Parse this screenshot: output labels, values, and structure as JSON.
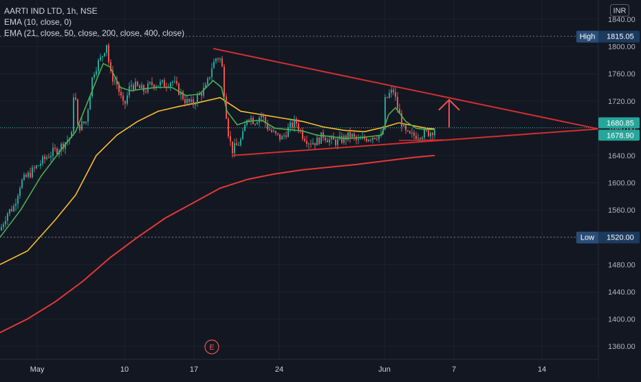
{
  "legend": {
    "symbol_line": "AARTI IND LTD, 1h, NSE",
    "ema1_line": "EMA (10, close, 0)",
    "ema2_line": "EMA (21, close, 50, close, 200, close, 400, close)"
  },
  "currency": "INR",
  "earnings_marker": "E",
  "colors": {
    "background": "#131722",
    "up": "#26a69a",
    "down": "#ef5350",
    "ema_fast": "#4caf50",
    "ema_mid": "#fbc02d",
    "ema_slow": "#e53935",
    "trendline": "#d32f2f",
    "price_tag": "#26a69a",
    "level_tag": "#1e2a44"
  },
  "chart_data": {
    "type": "candlestick",
    "y_axis": {
      "range": [
        1342,
        1848
      ],
      "ticks": [
        "1360.00",
        "1400.00",
        "1440.00",
        "1480.00",
        "1520.00",
        "1560.00",
        "1600.00",
        "1640.00",
        "1680.00",
        "1720.00",
        "1760.00",
        "1800.00",
        "1840.00"
      ]
    },
    "x_axis": {
      "tick_labels": [
        "May",
        "10",
        "17",
        "24",
        "Jun",
        "7",
        "14"
      ]
    },
    "levels": [
      {
        "label": "High",
        "value": "1815.05",
        "price": 1815.05
      },
      {
        "label": "Low",
        "value": "1520.00",
        "price": 1520.0
      }
    ],
    "price_tags": [
      {
        "value": "1680.85",
        "price": 1680.85
      },
      {
        "value": "1678.90",
        "price": 1678.9
      }
    ],
    "ohlc_keypoints": [
      [
        0,
        1530
      ],
      [
        10,
        1555
      ],
      [
        20,
        1565
      ],
      [
        30,
        1600
      ],
      [
        40,
        1610
      ],
      [
        55,
        1625
      ],
      [
        70,
        1640
      ],
      [
        85,
        1650
      ],
      [
        95,
        1660
      ],
      [
        105,
        1670
      ],
      [
        108,
        1760
      ],
      [
        112,
        1680
      ],
      [
        125,
        1690
      ],
      [
        135,
        1760
      ],
      [
        142,
        1775
      ],
      [
        148,
        1785
      ],
      [
        155,
        1805
      ],
      [
        160,
        1760
      ],
      [
        170,
        1745
      ],
      [
        180,
        1710
      ],
      [
        190,
        1745
      ],
      [
        200,
        1740
      ],
      [
        210,
        1735
      ],
      [
        220,
        1745
      ],
      [
        230,
        1745
      ],
      [
        240,
        1745
      ],
      [
        250,
        1750
      ],
      [
        260,
        1735
      ],
      [
        270,
        1720
      ],
      [
        280,
        1715
      ],
      [
        290,
        1730
      ],
      [
        300,
        1740
      ],
      [
        308,
        1770
      ],
      [
        315,
        1785
      ],
      [
        322,
        1780
      ],
      [
        328,
        1710
      ],
      [
        333,
        1665
      ],
      [
        338,
        1648
      ],
      [
        345,
        1655
      ],
      [
        352,
        1665
      ],
      [
        360,
        1700
      ],
      [
        370,
        1690
      ],
      [
        380,
        1700
      ],
      [
        390,
        1680
      ],
      [
        400,
        1670
      ],
      [
        410,
        1665
      ],
      [
        420,
        1680
      ],
      [
        430,
        1690
      ],
      [
        440,
        1670
      ],
      [
        450,
        1660
      ],
      [
        460,
        1660
      ],
      [
        470,
        1670
      ],
      [
        480,
        1662
      ],
      [
        490,
        1660
      ],
      [
        500,
        1665
      ],
      [
        510,
        1670
      ],
      [
        520,
        1660
      ],
      [
        530,
        1665
      ],
      [
        540,
        1668
      ],
      [
        550,
        1670
      ],
      [
        556,
        1665
      ],
      [
        560,
        1720
      ],
      [
        566,
        1730
      ],
      [
        572,
        1735
      ],
      [
        578,
        1710
      ],
      [
        582,
        1695
      ],
      [
        588,
        1675
      ],
      [
        595,
        1668
      ],
      [
        605,
        1670
      ],
      [
        615,
        1672
      ],
      [
        625,
        1674
      ],
      [
        632,
        1679
      ]
    ],
    "ema_fast_keypoints": [
      [
        0,
        1520
      ],
      [
        30,
        1560
      ],
      [
        60,
        1610
      ],
      [
        90,
        1650
      ],
      [
        110,
        1675
      ],
      [
        130,
        1725
      ],
      [
        150,
        1775
      ],
      [
        160,
        1770
      ],
      [
        175,
        1740
      ],
      [
        190,
        1735
      ],
      [
        210,
        1738
      ],
      [
        230,
        1740
      ],
      [
        250,
        1740
      ],
      [
        270,
        1728
      ],
      [
        290,
        1730
      ],
      [
        310,
        1750
      ],
      [
        322,
        1740
      ],
      [
        330,
        1705
      ],
      [
        345,
        1685
      ],
      [
        360,
        1690
      ],
      [
        380,
        1692
      ],
      [
        400,
        1680
      ],
      [
        420,
        1678
      ],
      [
        440,
        1676
      ],
      [
        460,
        1670
      ],
      [
        480,
        1668
      ],
      [
        500,
        1665
      ],
      [
        520,
        1666
      ],
      [
        540,
        1668
      ],
      [
        555,
        1670
      ],
      [
        565,
        1700
      ],
      [
        575,
        1710
      ],
      [
        590,
        1690
      ],
      [
        605,
        1680
      ],
      [
        620,
        1678
      ],
      [
        632,
        1678
      ]
    ],
    "ema_mid_keypoints": [
      [
        0,
        1480
      ],
      [
        40,
        1500
      ],
      [
        80,
        1545
      ],
      [
        110,
        1582
      ],
      [
        140,
        1640
      ],
      [
        170,
        1670
      ],
      [
        200,
        1690
      ],
      [
        230,
        1705
      ],
      [
        260,
        1712
      ],
      [
        290,
        1718
      ],
      [
        320,
        1725
      ],
      [
        335,
        1715
      ],
      [
        350,
        1705
      ],
      [
        380,
        1700
      ],
      [
        410,
        1695
      ],
      [
        440,
        1690
      ],
      [
        470,
        1682
      ],
      [
        500,
        1677
      ],
      [
        530,
        1675
      ],
      [
        560,
        1682
      ],
      [
        580,
        1688
      ],
      [
        600,
        1684
      ],
      [
        620,
        1680
      ],
      [
        632,
        1679
      ]
    ],
    "ema_slow_keypoints": [
      [
        0,
        1380
      ],
      [
        40,
        1400
      ],
      [
        80,
        1425
      ],
      [
        120,
        1455
      ],
      [
        160,
        1490
      ],
      [
        200,
        1520
      ],
      [
        240,
        1548
      ],
      [
        280,
        1570
      ],
      [
        320,
        1592
      ],
      [
        360,
        1605
      ],
      [
        400,
        1613
      ],
      [
        440,
        1619
      ],
      [
        480,
        1623
      ],
      [
        520,
        1627
      ],
      [
        560,
        1632
      ],
      [
        600,
        1637
      ],
      [
        632,
        1640
      ]
    ],
    "trend_upper": [
      [
        310,
        1797
      ],
      [
        870,
        1679
      ]
    ],
    "trend_lower": [
      [
        338,
        1640
      ],
      [
        870,
        1679
      ]
    ],
    "trend_lower_small": [
      [
        580,
        1662
      ],
      [
        645,
        1663
      ]
    ],
    "high_line_price": 1815.05,
    "low_line_price": 1520.0,
    "last_price_line": 1680.85
  }
}
